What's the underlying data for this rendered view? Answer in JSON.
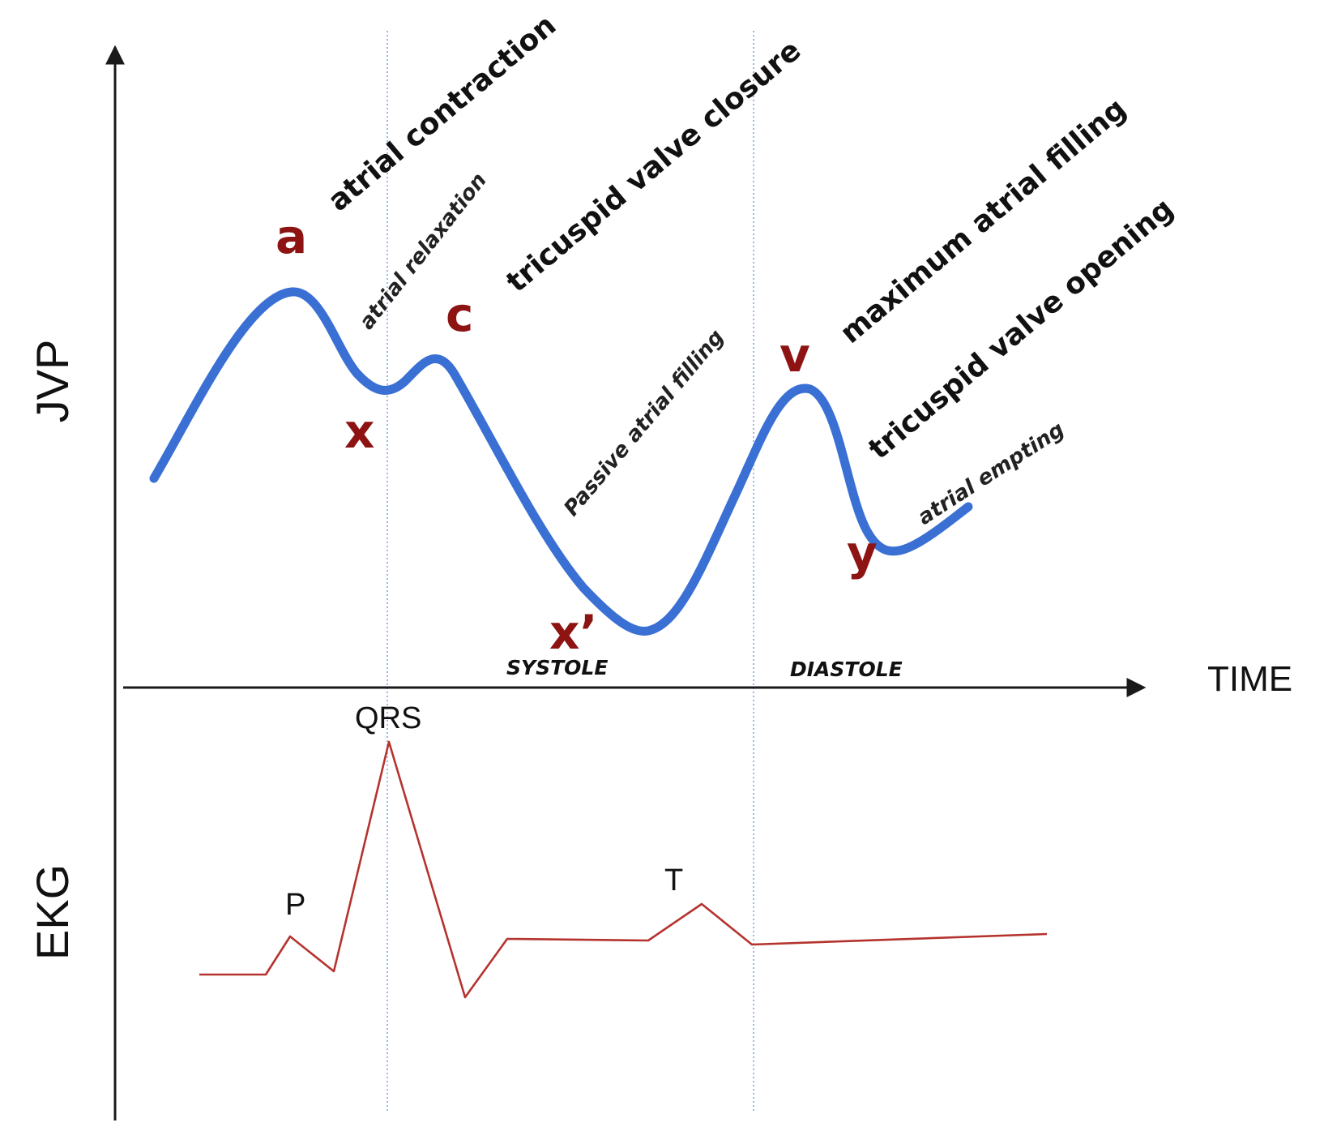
{
  "axes": {
    "y_top_label": "JVP",
    "y_bottom_label": "EKG",
    "x_label": "TIME"
  },
  "jvp_waves": {
    "a": "a",
    "x": "x",
    "c": "c",
    "x_prime": "x’",
    "v": "v",
    "y": "y"
  },
  "events": {
    "atrial_contraction": "atrial contraction",
    "atrial_relaxation": "atrial relaxation",
    "tricuspid_valve_closure": "tricuspid valve closure",
    "passive_atrial_filling": "Passive atrial filling",
    "maximum_atrial_filling": "maximum atrial filling",
    "tricuspid_valve_opening": "tricuspid valve opening",
    "atrial_empting": "atrial empting"
  },
  "phases": {
    "systole": "SYSTOLE",
    "diastole": "DIASTOLE"
  },
  "ekg_waves": {
    "p": "P",
    "qrs": "QRS",
    "t": "T"
  },
  "colors": {
    "jvp_curve": "#3a6fd4",
    "ekg_curve": "#b5332e",
    "wave_letters": "#8e1414",
    "guide_lines": "#9db8e6"
  }
}
